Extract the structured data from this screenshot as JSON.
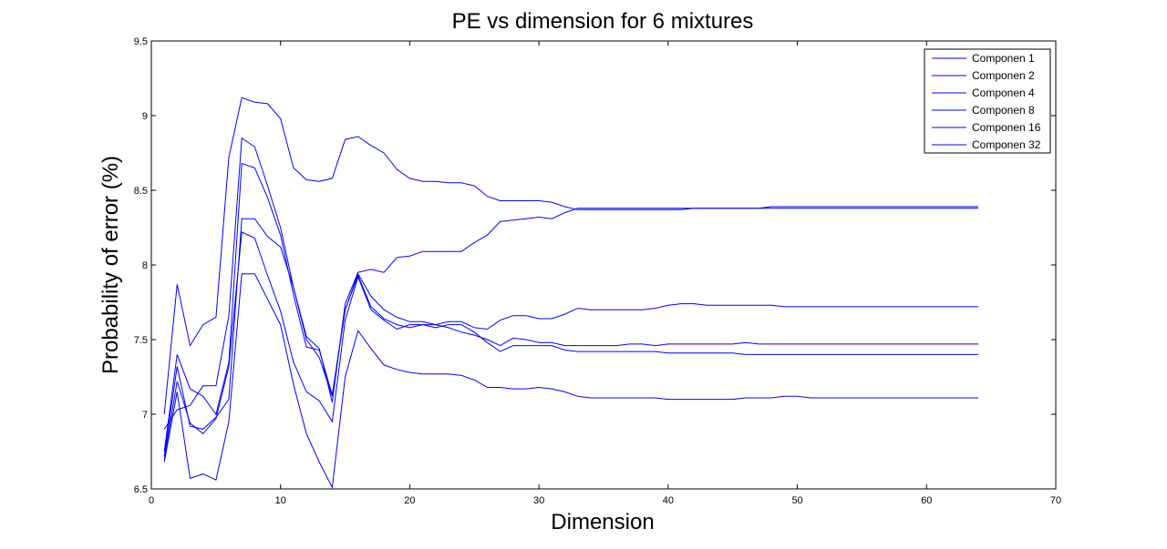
{
  "chart_data": {
    "type": "line",
    "title": "PE vs dimension for 6 mixtures",
    "xlabel": "Dimension",
    "ylabel": "Probability of error (%)",
    "xlim": [
      0,
      70
    ],
    "ylim": [
      6.5,
      9.5
    ],
    "xticks": [
      0,
      10,
      20,
      30,
      40,
      50,
      60,
      70
    ],
    "yticks": [
      6.5,
      7,
      7.5,
      8,
      8.5,
      9,
      9.5
    ],
    "grid": false,
    "legend_position": "top-right",
    "line_color": "#0000ff",
    "x": [
      1,
      2,
      3,
      4,
      5,
      6,
      7,
      8,
      9,
      10,
      11,
      12,
      13,
      14,
      15,
      16,
      17,
      18,
      19,
      20,
      21,
      22,
      23,
      24,
      25,
      26,
      27,
      28,
      29,
      30,
      31,
      32,
      33,
      34,
      35,
      36,
      37,
      38,
      39,
      40,
      41,
      42,
      43,
      44,
      45,
      46,
      47,
      48,
      49,
      50,
      51,
      52,
      53,
      54,
      55,
      56,
      57,
      58,
      59,
      60,
      61,
      62,
      63,
      64
    ],
    "series": [
      {
        "name": "Componen 1",
        "values": [
          7.0,
          7.87,
          7.46,
          7.6,
          7.65,
          8.72,
          9.12,
          9.09,
          9.08,
          8.98,
          8.65,
          8.57,
          8.56,
          8.58,
          8.84,
          8.86,
          8.8,
          8.75,
          8.64,
          8.58,
          8.56,
          8.56,
          8.55,
          8.55,
          8.53,
          8.46,
          8.43,
          8.43,
          8.43,
          8.43,
          8.42,
          8.39,
          8.37,
          8.37,
          8.37,
          8.37,
          8.37,
          8.37,
          8.37,
          8.37,
          8.37,
          8.38,
          8.38,
          8.38,
          8.38,
          8.38,
          8.38,
          8.38,
          8.38,
          8.38,
          8.38,
          8.38,
          8.38,
          8.38,
          8.38,
          8.38,
          8.38,
          8.38,
          8.38,
          8.38,
          8.38,
          8.38,
          8.38,
          8.38
        ]
      },
      {
        "name": "Componen 2",
        "values": [
          6.9,
          7.03,
          7.06,
          7.19,
          7.19,
          7.66,
          8.85,
          8.79,
          8.53,
          8.25,
          7.85,
          7.52,
          7.44,
          7.08,
          7.74,
          7.95,
          7.97,
          7.95,
          8.05,
          8.06,
          8.09,
          8.09,
          8.09,
          8.09,
          8.15,
          8.2,
          8.29,
          8.3,
          8.31,
          8.32,
          8.31,
          8.35,
          8.38,
          8.38,
          8.38,
          8.38,
          8.38,
          8.38,
          8.38,
          8.38,
          8.38,
          8.38,
          8.38,
          8.38,
          8.38,
          8.38,
          8.38,
          8.39,
          8.39,
          8.39,
          8.39,
          8.39,
          8.39,
          8.39,
          8.39,
          8.39,
          8.39,
          8.39,
          8.39,
          8.39,
          8.39,
          8.39,
          8.39,
          8.39
        ]
      },
      {
        "name": "Componen 4",
        "values": [
          6.75,
          7.4,
          7.17,
          7.12,
          7.0,
          7.35,
          8.68,
          8.65,
          8.45,
          8.2,
          7.8,
          7.45,
          7.43,
          7.13,
          7.7,
          7.93,
          7.72,
          7.64,
          7.6,
          7.58,
          7.6,
          7.6,
          7.62,
          7.62,
          7.58,
          7.57,
          7.63,
          7.66,
          7.66,
          7.64,
          7.64,
          7.67,
          7.71,
          7.7,
          7.7,
          7.7,
          7.7,
          7.7,
          7.71,
          7.73,
          7.74,
          7.74,
          7.73,
          7.73,
          7.73,
          7.73,
          7.73,
          7.73,
          7.72,
          7.72,
          7.72,
          7.72,
          7.72,
          7.72,
          7.72,
          7.72,
          7.72,
          7.72,
          7.72,
          7.72,
          7.72,
          7.72,
          7.72,
          7.72
        ]
      },
      {
        "name": "Componen 8",
        "values": [
          6.72,
          7.32,
          6.92,
          6.9,
          6.98,
          7.1,
          8.31,
          8.31,
          8.19,
          8.12,
          7.85,
          7.5,
          7.38,
          7.12,
          7.7,
          7.94,
          7.79,
          7.7,
          7.65,
          7.62,
          7.62,
          7.6,
          7.58,
          7.55,
          7.53,
          7.5,
          7.46,
          7.51,
          7.5,
          7.48,
          7.48,
          7.46,
          7.46,
          7.46,
          7.46,
          7.46,
          7.47,
          7.47,
          7.46,
          7.47,
          7.47,
          7.47,
          7.47,
          7.47,
          7.47,
          7.48,
          7.47,
          7.47,
          7.47,
          7.47,
          7.47,
          7.47,
          7.47,
          7.47,
          7.47,
          7.47,
          7.47,
          7.47,
          7.47,
          7.47,
          7.47,
          7.47,
          7.47,
          7.47
        ]
      },
      {
        "name": "Componen 16",
        "values": [
          6.7,
          7.22,
          6.94,
          6.87,
          6.97,
          7.32,
          8.22,
          8.18,
          7.93,
          7.69,
          7.35,
          7.15,
          7.09,
          6.95,
          7.63,
          7.92,
          7.7,
          7.63,
          7.57,
          7.6,
          7.6,
          7.58,
          7.6,
          7.6,
          7.55,
          7.48,
          7.42,
          7.46,
          7.46,
          7.46,
          7.46,
          7.43,
          7.42,
          7.42,
          7.42,
          7.42,
          7.42,
          7.42,
          7.42,
          7.41,
          7.41,
          7.41,
          7.41,
          7.41,
          7.41,
          7.4,
          7.4,
          7.4,
          7.4,
          7.4,
          7.4,
          7.4,
          7.4,
          7.4,
          7.4,
          7.4,
          7.4,
          7.4,
          7.4,
          7.4,
          7.4,
          7.4,
          7.4,
          7.4
        ]
      },
      {
        "name": "Componen 32",
        "values": [
          6.68,
          7.15,
          6.57,
          6.6,
          6.56,
          6.95,
          7.94,
          7.94,
          7.77,
          7.6,
          7.2,
          6.87,
          6.68,
          6.51,
          7.25,
          7.56,
          7.44,
          7.33,
          7.3,
          7.28,
          7.27,
          7.27,
          7.27,
          7.26,
          7.23,
          7.18,
          7.18,
          7.17,
          7.17,
          7.18,
          7.17,
          7.15,
          7.12,
          7.11,
          7.11,
          7.11,
          7.11,
          7.11,
          7.11,
          7.1,
          7.1,
          7.1,
          7.1,
          7.1,
          7.1,
          7.11,
          7.11,
          7.11,
          7.12,
          7.12,
          7.11,
          7.11,
          7.11,
          7.11,
          7.11,
          7.11,
          7.11,
          7.11,
          7.11,
          7.11,
          7.11,
          7.11,
          7.11,
          7.11
        ]
      }
    ]
  }
}
